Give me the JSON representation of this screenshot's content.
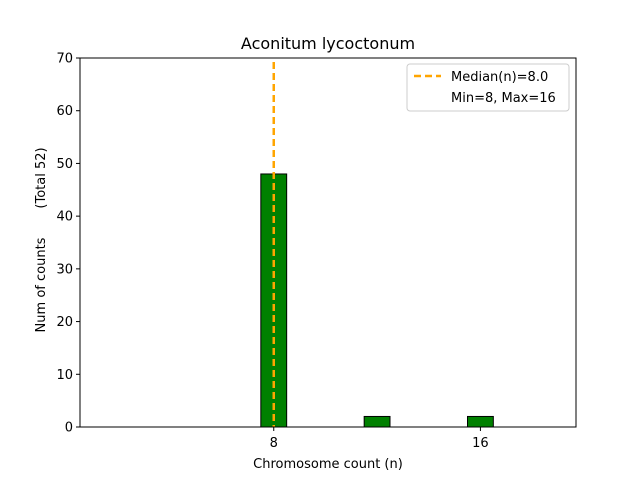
{
  "chart_data": {
    "type": "bar",
    "title": "Aconitum lycoctonum",
    "xlabel": "Chromosome count (n)",
    "ylabel": "Num of counts",
    "ylabel_total": "(Total 52)",
    "xlim": [
      0.5,
      19.7
    ],
    "ylim": [
      0,
      70
    ],
    "x_ticks": [
      8,
      16
    ],
    "y_ticks": [
      0,
      10,
      20,
      30,
      40,
      50,
      60,
      70
    ],
    "bar_width": 1,
    "bars": [
      {
        "x": 8,
        "value": 48
      },
      {
        "x": 12,
        "value": 2
      },
      {
        "x": 16,
        "value": 2
      }
    ],
    "bar_color": "#008000",
    "bar_edge_color": "#000000",
    "median": 8.0,
    "median_color": "#FFA500",
    "legend": {
      "position": "top-right",
      "median_label": "Median(n)=8.0",
      "range_label": "Min=8, Max=16"
    }
  }
}
